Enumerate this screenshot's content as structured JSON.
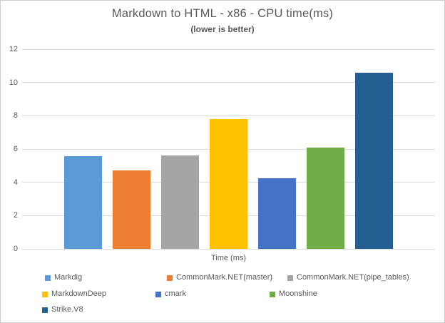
{
  "chart_data": {
    "type": "bar",
    "title": "Markdown to HTML - x86 - CPU time(ms)",
    "subtitle": "(lower is better)",
    "xlabel": "Time (ms)",
    "ylabel": "",
    "ylim": [
      0,
      12
    ],
    "yticks": [
      0,
      2,
      4,
      6,
      8,
      10,
      12
    ],
    "grid": true,
    "legend_position": "bottom",
    "series": [
      {
        "name": "Markdig",
        "value": 5.55,
        "color": "#5B9BD5"
      },
      {
        "name": "CommonMark.NET(master)",
        "value": 4.7,
        "color": "#ED7D31"
      },
      {
        "name": "CommonMark.NET(pipe_tables)",
        "value": 5.6,
        "color": "#A5A5A5"
      },
      {
        "name": "MarkdownDeep",
        "value": 7.8,
        "color": "#FFC000"
      },
      {
        "name": "cmark",
        "value": 4.25,
        "color": "#4472C4"
      },
      {
        "name": "Moonshine",
        "value": 6.1,
        "color": "#70AD47"
      },
      {
        "name": "Strike.V8",
        "value": 10.6,
        "color": "#255E91"
      }
    ]
  },
  "colors": {
    "gridline": "#D9D9D9",
    "text": "#595959",
    "frame_border": "#CFCFCF",
    "background": "#FFFFFF"
  }
}
